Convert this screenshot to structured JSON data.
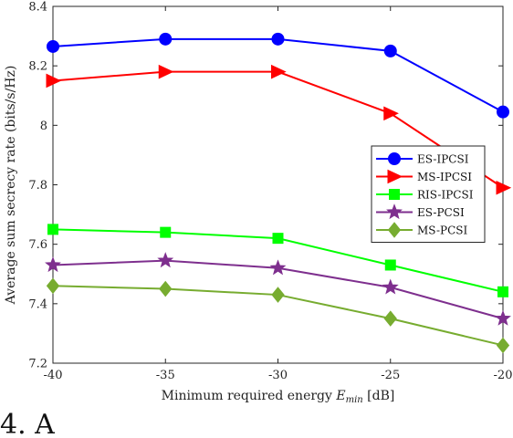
{
  "chart_data": {
    "type": "line",
    "title": "",
    "xlabel": "Minimum required energy E_min [dB]",
    "xlabel_parts": {
      "prefix": "Minimum required energy ",
      "symbol": "E",
      "subscript": "min",
      "suffix": " [dB]"
    },
    "ylabel": "Average sum secrecy rate (bits/s/Hz)",
    "xlim": [
      -40,
      -20
    ],
    "ylim": [
      7.2,
      8.4
    ],
    "xticks": [
      -40,
      -35,
      -30,
      -25,
      -20
    ],
    "xtick_labels": [
      "-40",
      "-35",
      "-30",
      "-25",
      "-20"
    ],
    "yticks": [
      7.2,
      7.4,
      7.6,
      7.8,
      8.0,
      8.2,
      8.4
    ],
    "ytick_labels": [
      "7.2",
      "7.4",
      "7.6",
      "7.8",
      "8",
      "8.2",
      "8.4"
    ],
    "grid": false,
    "legend_position": "center-right",
    "x": [
      -40,
      -35,
      -30,
      -25,
      -20
    ],
    "series": [
      {
        "name": "ES-IPCSI",
        "values": [
          8.265,
          8.29,
          8.29,
          8.25,
          8.045
        ],
        "color": "#0000ff",
        "marker": "circle"
      },
      {
        "name": "MS-IPCSI",
        "values": [
          8.15,
          8.18,
          8.18,
          8.04,
          7.79
        ],
        "color": "#ff0000",
        "marker": "triangle-right"
      },
      {
        "name": "RIS-IPCSI",
        "values": [
          7.65,
          7.64,
          7.62,
          7.53,
          7.44
        ],
        "color": "#00ff00",
        "marker": "square"
      },
      {
        "name": "ES-PCSI",
        "values": [
          7.53,
          7.545,
          7.52,
          7.455,
          7.35
        ],
        "color": "#7e2f8e",
        "marker": "star"
      },
      {
        "name": "MS-PCSI",
        "values": [
          7.46,
          7.45,
          7.43,
          7.35,
          7.26
        ],
        "color": "#77ac30",
        "marker": "diamond"
      }
    ]
  },
  "caption_text": "4. A"
}
